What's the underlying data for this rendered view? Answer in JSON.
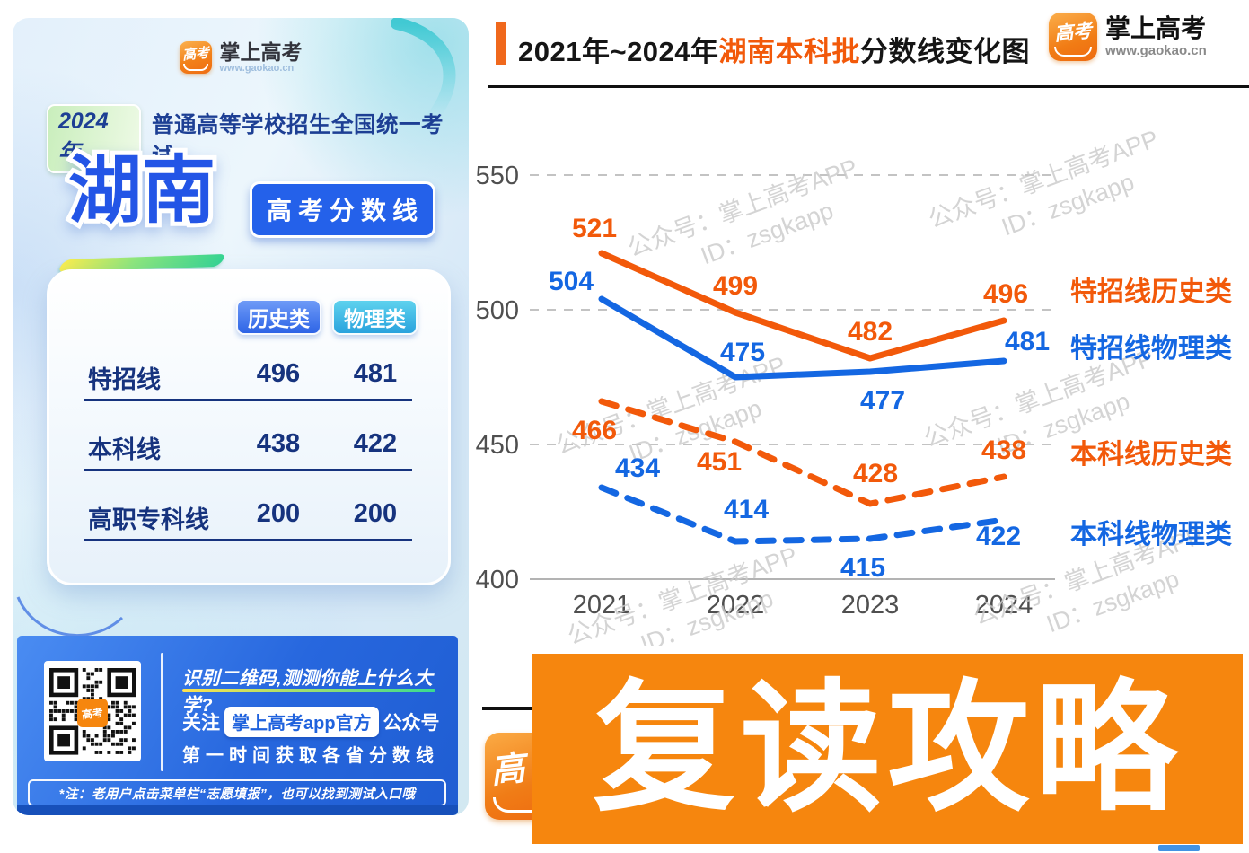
{
  "poster": {
    "logo": {
      "brand": "掌上高考",
      "url": "www.gaokao.cn",
      "icon_text": "高考"
    },
    "year_badge": "2024年",
    "exam_title": "普通高等学校招生全国统一考试",
    "province": "湖南",
    "score_badge": "高考分数线",
    "table": {
      "headers": [
        "历史类",
        "物理类"
      ],
      "rows": [
        {
          "label": "特招线",
          "history": "496",
          "physics": "481"
        },
        {
          "label": "本科线",
          "history": "438",
          "physics": "422"
        },
        {
          "label": "高职专科线",
          "history": "200",
          "physics": "200"
        }
      ]
    },
    "footer": {
      "scan_title": "识别二维码,测测你能上什么大学?",
      "follow_prefix": "关注",
      "follow_badge": "掌上高考app官方",
      "follow_suffix": "公众号",
      "follow_line2": "第一时间获取各省分数线",
      "note": "*注：老用户点击菜单栏“志愿填报”，也可以找到测试入口哦"
    }
  },
  "header": {
    "title_prefix": "2021年~2024年",
    "title_highlight": "湖南本科批",
    "title_suffix": "分数线变化图",
    "logo": {
      "brand": "掌上高考",
      "url": "www.gaokao.cn",
      "icon_text": "高考"
    }
  },
  "chart_data": {
    "type": "line",
    "title": "2021年~2024年湖南本科批分数线变化图",
    "x": [
      "2021",
      "2022",
      "2023",
      "2024"
    ],
    "series": [
      {
        "name": "特招线历史类",
        "values": [
          521,
          499,
          482,
          496
        ],
        "color": "#f2590a",
        "dash": false
      },
      {
        "name": "特招线物理类",
        "values": [
          504,
          475,
          477,
          481
        ],
        "color": "#1467e2",
        "dash": false
      },
      {
        "name": "本科线历史类",
        "values": [
          466,
          451,
          428,
          438
        ],
        "color": "#f2590a",
        "dash": true
      },
      {
        "name": "本科线物理类",
        "values": [
          434,
          414,
          415,
          422
        ],
        "color": "#1467e2",
        "dash": true
      }
    ],
    "yticks": [
      550,
      500,
      450,
      400
    ],
    "ylim": [
      395,
      565
    ],
    "grid": "horizontal-dashed",
    "legend_position": "right-of-lines",
    "data_labels": true
  },
  "watermark": {
    "line1": "公众号：掌上高考APP",
    "line2": "ID：zsgkapp"
  },
  "banner": {
    "text": "复读攻略"
  },
  "colors": {
    "accent_orange": "#f2590a",
    "accent_blue": "#1467e2",
    "banner_orange": "#f6860e",
    "footer_blue": "#2767de",
    "navy": "#16337e",
    "grid_gray": "#c3c3c3",
    "watermark_gray": "#cacaca"
  }
}
